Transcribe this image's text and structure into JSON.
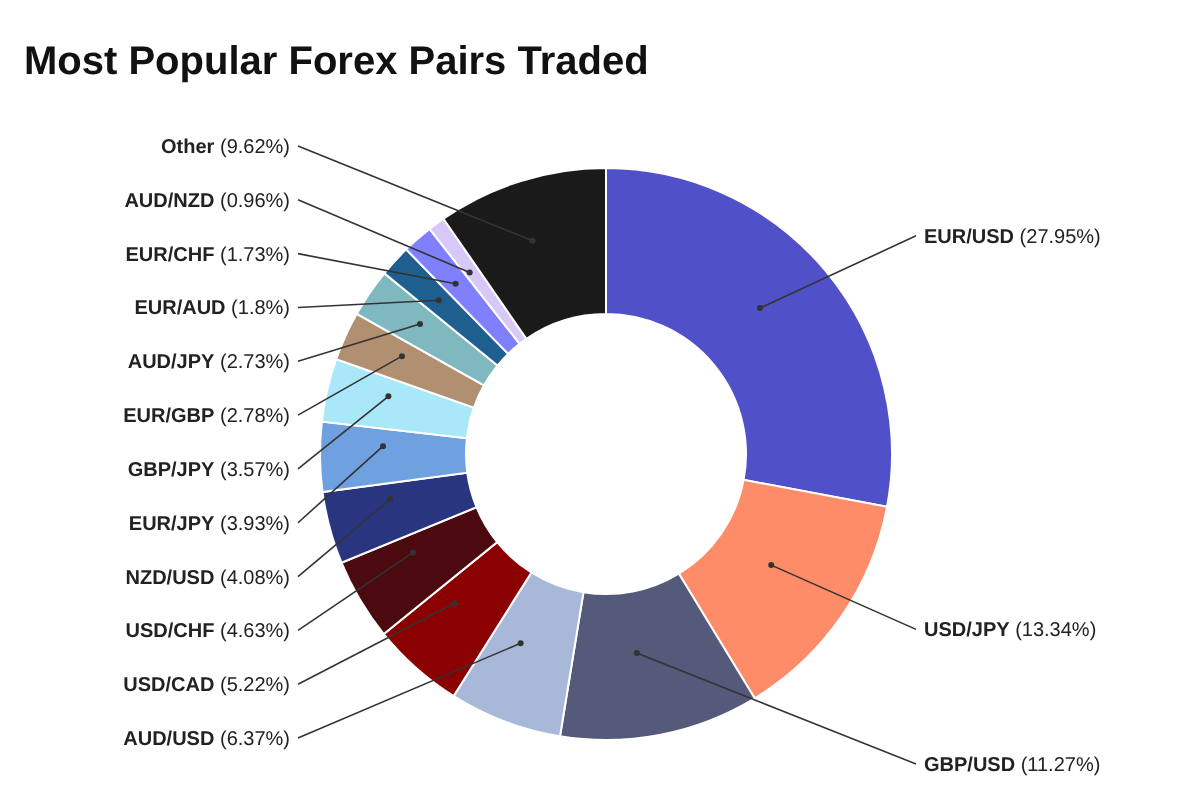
{
  "chart_data": {
    "type": "donut",
    "title": "Most Popular Forex Pairs Traded",
    "categories": [
      "EUR/USD",
      "USD/JPY",
      "GBP/USD",
      "AUD/USD",
      "USD/CAD",
      "USD/CHF",
      "NZD/USD",
      "EUR/JPY",
      "GBP/JPY",
      "EUR/GBP",
      "AUD/JPY",
      "EUR/AUD",
      "EUR/CHF",
      "AUD/NZD",
      "Other"
    ],
    "values": [
      27.95,
      13.34,
      11.27,
      6.37,
      5.22,
      4.63,
      4.08,
      3.93,
      3.57,
      2.78,
      2.73,
      1.8,
      1.73,
      0.96,
      9.62
    ],
    "value_labels": [
      "(27.95%)",
      "(13.34%)",
      "(11.27%)",
      "(6.37%)",
      "(5.22%)",
      "(4.63%)",
      "(4.08%)",
      "(3.93%)",
      "(3.57%)",
      "(2.78%)",
      "(2.73%)",
      "(1.8%)",
      "(1.73%)",
      "(0.96%)",
      "(9.62%)"
    ],
    "colors": [
      "#5050c8",
      "#ff8c69",
      "#555a7a",
      "#a8b8d8",
      "#8b0000",
      "#4a0a10",
      "#2a3580",
      "#6fa0e0",
      "#a8e8f8",
      "#b09070",
      "#80b8c0",
      "#1f5f90",
      "#8080ff",
      "#d8c8f8",
      "#1a1a1a"
    ]
  }
}
